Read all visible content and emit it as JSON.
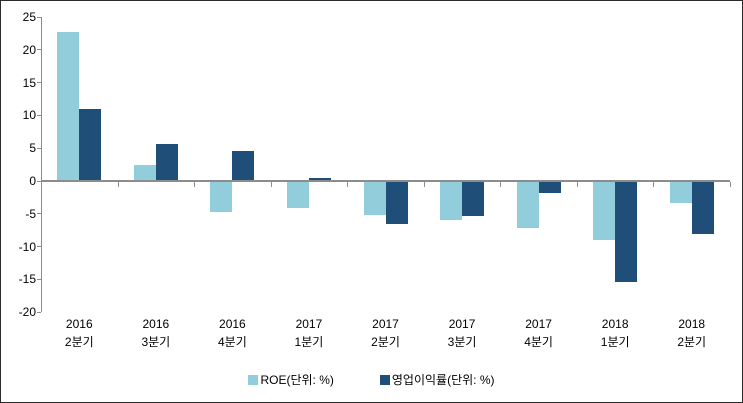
{
  "chart_data": {
    "type": "bar",
    "title": "",
    "categories": [
      "2016 2분기",
      "2016 3분기",
      "2016 4분기",
      "2017 1분기",
      "2017 2분기",
      "2017 3분기",
      "2017 4분기",
      "2018 1분기",
      "2018 2분기"
    ],
    "series": [
      {
        "name": "ROE(단위: %)",
        "color": "#92CDDC",
        "values": [
          22.7,
          2.5,
          -4.8,
          -4.1,
          -5.2,
          -5.9,
          -7.2,
          -9.0,
          -3.3
        ]
      },
      {
        "name": "영업이익률(단위: %)",
        "color": "#1F4E79",
        "values": [
          11.0,
          5.7,
          4.6,
          0.4,
          -6.5,
          -5.4,
          -1.8,
          -15.4,
          -8.1
        ]
      }
    ],
    "xlabel": "",
    "ylabel": "",
    "ylim": [
      -20,
      25
    ],
    "yticks": [
      25,
      20,
      15,
      10,
      5,
      0,
      -5,
      -10,
      -15,
      -20
    ],
    "grid": false,
    "legend_position": "bottom-center",
    "axis_color": "#8C8C8C",
    "text_color": "#000000",
    "frame_color": "#2B2B2B",
    "background_color": "#FFFFFF"
  }
}
